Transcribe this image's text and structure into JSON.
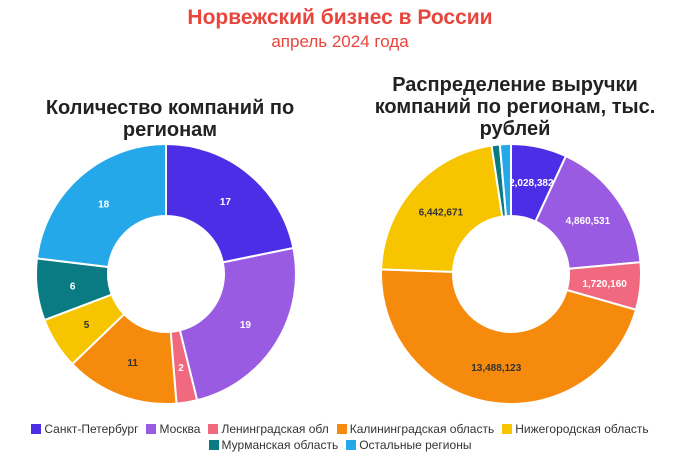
{
  "title": "Норвежский бизнес в России",
  "subtitle": "апрель 2024 года",
  "legend": [
    {
      "label": "Санкт-Петербург",
      "color": "#4b2ee6"
    },
    {
      "label": "Москва",
      "color": "#9a5be3"
    },
    {
      "label": "Ленинградская обл",
      "color": "#f0697e"
    },
    {
      "label": "Калининградская область",
      "color": "#f58a0c"
    },
    {
      "label": "Нижегородская область",
      "color": "#f7c500"
    },
    {
      "label": "Мурманская область",
      "color": "#0a7b83"
    },
    {
      "label": "Остальные регионы",
      "color": "#25a8ea"
    }
  ],
  "chart_data": [
    {
      "type": "pie",
      "title": "Количество компаний по регионам",
      "categories": [
        "Санкт-Петербург",
        "Москва",
        "Ленинградская обл",
        "Калининградская область",
        "Нижегородская область",
        "Мурманская область",
        "Остальные регионы"
      ],
      "values": [
        17,
        19,
        2,
        11,
        5,
        6,
        18
      ],
      "labels": [
        "17",
        "19",
        "2",
        "11",
        "5",
        "6",
        "18"
      ],
      "donut": true
    },
    {
      "type": "pie",
      "title": "Распределение выручки компаний по регионам, тыс. рублей",
      "categories": [
        "Санкт-Петербург",
        "Москва",
        "Ленинградская обл",
        "Калининградская область",
        "Нижегородская область",
        "Мурманская область",
        "Остальные регионы"
      ],
      "values": [
        2028382,
        4860531,
        1720160,
        13488123,
        6442671,
        300000,
        400000
      ],
      "labels": [
        "2,028,382",
        "4,860,531",
        "1,720,160",
        "13,488,123",
        "6,442,671",
        "",
        ""
      ],
      "donut": true
    }
  ]
}
